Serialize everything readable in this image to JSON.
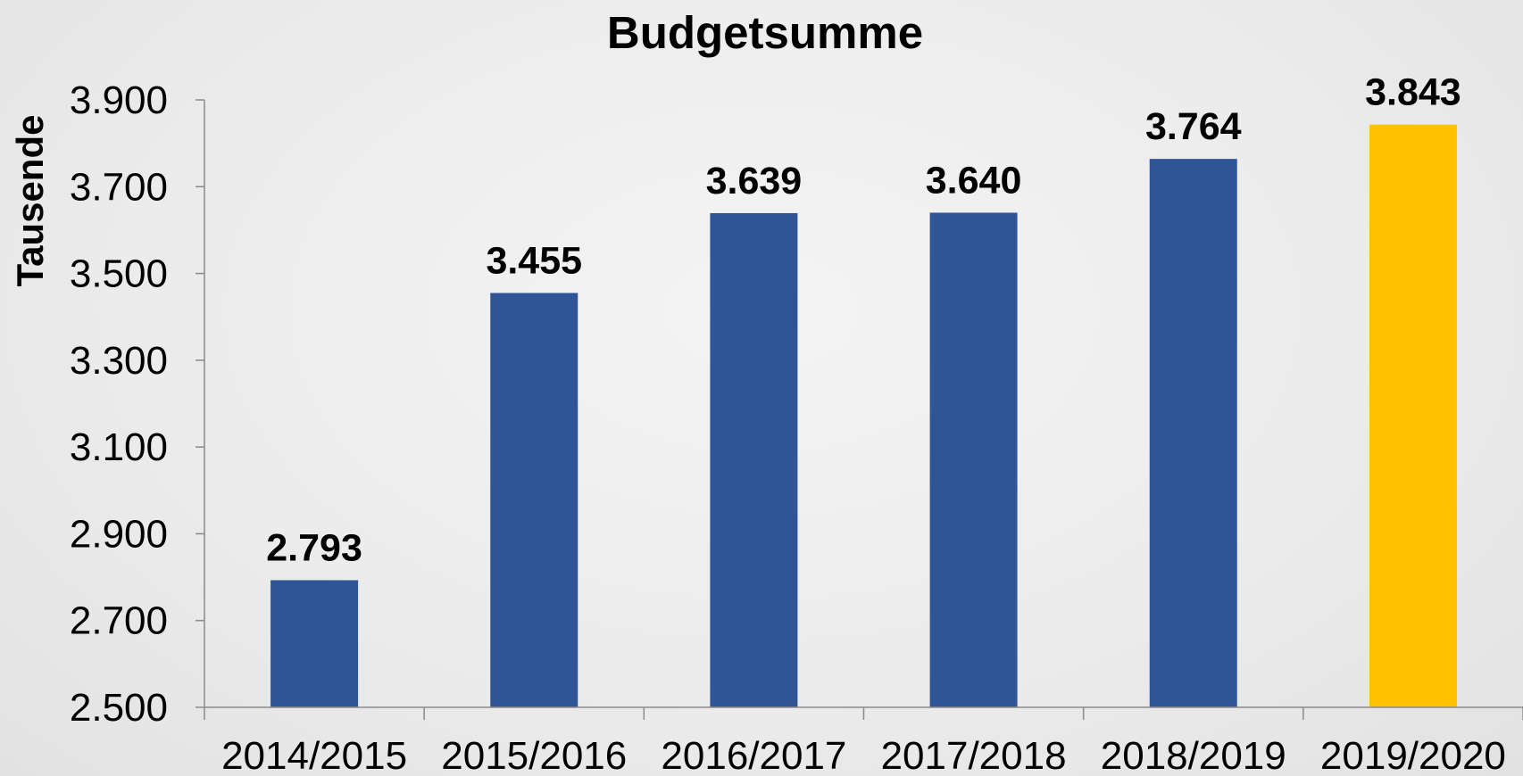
{
  "chart_data": {
    "type": "bar",
    "title": "Budgetsumme",
    "xlabel": "",
    "ylabel": "Tausende",
    "categories": [
      "2014/2015",
      "2015/2016",
      "2016/2017",
      "2017/2018",
      "2018/2019",
      "2019/2020"
    ],
    "values": [
      2793,
      3455,
      3639,
      3640,
      3764,
      3843
    ],
    "value_labels": [
      "2.793",
      "3.455",
      "3.639",
      "3.640",
      "3.764",
      "3.843"
    ],
    "ylim": [
      2500,
      3900
    ],
    "yticks": [
      2500,
      2700,
      2900,
      3100,
      3300,
      3500,
      3700,
      3900
    ],
    "ytick_labels": [
      "2.500",
      "2.700",
      "2.900",
      "3.100",
      "3.300",
      "3.500",
      "3.700",
      "3.900"
    ],
    "grid": false,
    "legend": "none",
    "colors": {
      "default_bar": "#2f5597",
      "highlight_bar": "#ffc000",
      "axis": "#8a8a8a"
    },
    "highlight_index": 5
  }
}
